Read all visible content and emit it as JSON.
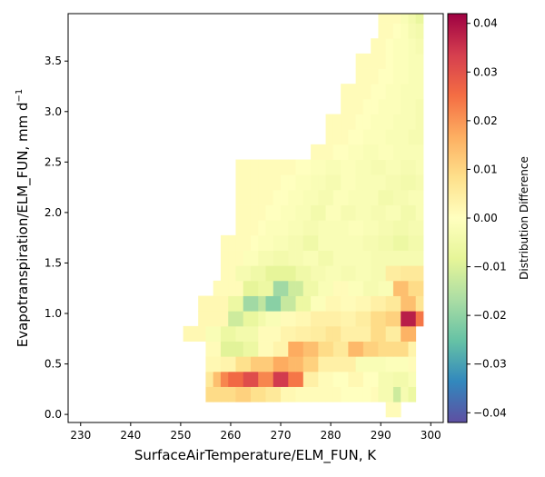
{
  "chart_data": {
    "type": "heatmap",
    "xlabel": "SurfaceAirTemperature/ELM_FUN,  K",
    "ylabel": "Evapotranspiration/ELM_FUN,  mm d",
    "ylabel_sup": "−1",
    "xlim": [
      227.5,
      302.5
    ],
    "ylim": [
      -0.08,
      3.97
    ],
    "xticks": [
      230,
      240,
      250,
      260,
      270,
      280,
      290,
      300
    ],
    "xtick_labels": [
      "230",
      "240",
      "250",
      "260",
      "270",
      "280",
      "290",
      "300"
    ],
    "yticks": [
      0.0,
      0.5,
      1.0,
      1.5,
      2.0,
      2.5,
      3.0,
      3.5
    ],
    "ytick_labels": [
      "0.0",
      "0.5",
      "1.0",
      "1.5",
      "2.0",
      "2.5",
      "3.0",
      "3.5"
    ],
    "cell_x0": 225,
    "cell_dx": 1.5,
    "cell_dy": 0.15,
    "rows": [
      {
        "y": -0.025,
        "c0": 44,
        "values": [
          0.001,
          0.001
        ]
      },
      {
        "y": 0.125,
        "c0": 20,
        "values": [
          0.009,
          0.009,
          0.009,
          0.009,
          0.011,
          0.011,
          0.008,
          0.008,
          0.006,
          0.006,
          0.002,
          0.002,
          0.001,
          0.001,
          0.001,
          0.001,
          0.001,
          0.001,
          0.0,
          0.0,
          0.0,
          0.0,
          0.001,
          -0.003,
          -0.003,
          -0.012,
          -0.003,
          -0.006
        ]
      },
      {
        "y": 0.275,
        "c0": 20,
        "values": [
          0.006,
          0.014,
          0.022,
          0.026,
          0.026,
          0.031,
          0.031,
          0.022,
          0.022,
          0.034,
          0.034,
          0.024,
          0.024,
          0.004,
          0.004,
          0.001,
          0.001,
          0.0,
          0.0,
          0.002,
          0.002,
          0.0,
          0.0,
          -0.003,
          -0.003,
          -0.004,
          -0.004,
          -0.002
        ]
      },
      {
        "y": 0.425,
        "c0": 20,
        "values": [
          0.002,
          0.002,
          0.003,
          0.003,
          0.008,
          0.008,
          0.012,
          0.012,
          0.012,
          0.017,
          0.017,
          0.015,
          0.015,
          0.011,
          0.011,
          0.004,
          0.004,
          0.004,
          0.004,
          0.004,
          -0.002,
          -0.002,
          -0.002,
          -0.002,
          -0.001,
          -0.001,
          -0.001,
          0.001
        ]
      },
      {
        "y": 0.575,
        "c0": 20,
        "values": [
          0.001,
          0.001,
          -0.009,
          -0.009,
          -0.009,
          -0.006,
          -0.006,
          0.001,
          0.001,
          0.003,
          0.003,
          0.017,
          0.017,
          0.014,
          0.014,
          0.009,
          0.009,
          0.006,
          0.006,
          0.015,
          0.015,
          0.011,
          0.011,
          0.009,
          0.009,
          0.009,
          0.009,
          0.003
        ]
      },
      {
        "y": 0.725,
        "c0": 17,
        "values": [
          0.002,
          0.002,
          0.002,
          -0.002,
          -0.002,
          -0.006,
          -0.006,
          -0.004,
          -0.004,
          -0.004,
          0.001,
          0.001,
          0.001,
          0.003,
          0.003,
          0.004,
          0.004,
          0.005,
          0.005,
          0.007,
          0.007,
          0.004,
          0.004,
          0.004,
          0.004,
          0.009,
          0.009,
          0.005,
          0.005,
          0.016,
          0.016
        ]
      },
      {
        "y": 0.875,
        "c0": 19,
        "values": [
          0.002,
          0.002,
          0.002,
          0.002,
          -0.012,
          -0.012,
          -0.007,
          -0.007,
          -0.004,
          -0.002,
          -0.002,
          0.001,
          0.001,
          0.002,
          0.002,
          0.004,
          0.004,
          0.004,
          0.004,
          0.003,
          0.003,
          0.005,
          0.005,
          0.009,
          0.009,
          0.011,
          0.011,
          0.038,
          0.038,
          0.024
        ]
      },
      {
        "y": 1.025,
        "c0": 19,
        "values": [
          0.002,
          0.002,
          0.002,
          0.002,
          -0.006,
          -0.006,
          -0.018,
          -0.018,
          -0.014,
          -0.021,
          -0.021,
          -0.013,
          -0.013,
          -0.006,
          -0.006,
          -0.001,
          -0.001,
          0.002,
          0.002,
          0.001,
          0.001,
          0.002,
          0.002,
          0.004,
          0.004,
          0.006,
          0.006,
          0.014,
          0.014,
          0.007
        ]
      },
      {
        "y": 1.175,
        "c0": 21,
        "values": [
          0.001,
          0.001,
          0.001,
          0.001,
          -0.008,
          -0.008,
          -0.006,
          -0.006,
          -0.018,
          -0.018,
          -0.012,
          -0.012,
          -0.005,
          -0.005,
          -0.002,
          -0.002,
          0.001,
          0.001,
          -0.001,
          -0.001,
          -0.003,
          -0.003,
          -0.002,
          -0.002,
          0.014,
          0.014,
          0.009,
          0.009
        ]
      },
      {
        "y": 1.325,
        "c0": 22,
        "values": [
          0.001,
          0.001,
          -0.003,
          -0.003,
          -0.005,
          -0.005,
          -0.008,
          -0.008,
          -0.008,
          -0.008,
          -0.005,
          -0.005,
          -0.003,
          -0.003,
          -0.002,
          -0.002,
          -0.003,
          -0.003,
          -0.002,
          -0.002,
          -0.003,
          -0.003,
          0.005,
          0.005,
          0.006,
          0.006,
          0.006
        ]
      },
      {
        "y": 1.475,
        "c0": 22,
        "values": [
          0.001,
          0.001,
          0.001,
          -0.001,
          -0.001,
          -0.003,
          -0.003,
          -0.004,
          -0.004,
          -0.003,
          -0.003,
          -0.002,
          -0.002,
          -0.004,
          -0.004,
          -0.002,
          -0.002,
          -0.002,
          -0.002,
          -0.002,
          -0.003,
          -0.003,
          -0.003,
          -0.003,
          -0.003,
          -0.003,
          -0.003
        ]
      },
      {
        "y": 1.625,
        "c0": 22,
        "values": [
          0.001,
          0.001,
          0.001,
          0.001,
          0.0,
          -0.001,
          -0.001,
          -0.002,
          -0.002,
          -0.003,
          -0.003,
          -0.005,
          -0.005,
          -0.002,
          -0.002,
          -0.002,
          -0.002,
          -0.002,
          -0.002,
          -0.003,
          -0.003,
          -0.004,
          -0.004,
          -0.006,
          -0.006,
          -0.004,
          -0.004
        ]
      },
      {
        "y": 1.775,
        "c0": 24,
        "values": [
          0.001,
          0.001,
          0.001,
          0.0,
          -0.001,
          -0.001,
          -0.001,
          -0.002,
          -0.002,
          -0.003,
          -0.003,
          -0.002,
          -0.002,
          -0.002,
          -0.002,
          -0.001,
          -0.001,
          -0.002,
          -0.002,
          -0.003,
          -0.003,
          -0.004,
          -0.004,
          -0.003,
          -0.003
        ]
      },
      {
        "y": 1.925,
        "c0": 24,
        "values": [
          0.001,
          0.001,
          0.001,
          0.001,
          0.0,
          0.0,
          -0.001,
          -0.001,
          -0.002,
          -0.002,
          -0.004,
          -0.004,
          -0.001,
          -0.001,
          -0.003,
          -0.003,
          -0.002,
          -0.002,
          -0.003,
          -0.003,
          -0.002,
          -0.002,
          -0.004,
          -0.004,
          -0.002
        ]
      },
      {
        "y": 2.075,
        "c0": 24,
        "values": [
          0.001,
          0.001,
          0.001,
          0.001,
          0.001,
          0.0,
          0.0,
          -0.001,
          -0.001,
          -0.002,
          -0.002,
          -0.003,
          -0.003,
          -0.001,
          -0.001,
          -0.002,
          -0.002,
          -0.002,
          -0.002,
          -0.004,
          -0.004,
          -0.003,
          -0.003,
          -0.002,
          -0.002
        ]
      },
      {
        "y": 2.225,
        "c0": 24,
        "values": [
          0.001,
          0.001,
          0.001,
          0.001,
          0.001,
          0.001,
          0.0,
          0.0,
          -0.001,
          -0.001,
          -0.002,
          -0.002,
          -0.003,
          -0.003,
          -0.001,
          -0.001,
          -0.002,
          -0.002,
          -0.002,
          -0.002,
          -0.003,
          -0.003,
          -0.004,
          -0.004,
          -0.003
        ]
      },
      {
        "y": 2.375,
        "c0": 24,
        "values": [
          0.001,
          0.001,
          0.001,
          0.001,
          0.001,
          0.001,
          0.001,
          0.001,
          0.0,
          0.0,
          -0.001,
          -0.001,
          -0.002,
          -0.002,
          -0.001,
          -0.001,
          -0.002,
          -0.002,
          -0.003,
          -0.003,
          -0.002,
          -0.002,
          -0.003,
          -0.003,
          -0.002
        ]
      },
      {
        "y": 2.525,
        "c0": 34,
        "values": [
          0.001,
          0.001,
          0.001,
          0.0,
          0.0,
          -0.001,
          -0.001,
          -0.002,
          -0.002,
          -0.001,
          -0.001,
          -0.002,
          -0.002,
          -0.002,
          -0.002
        ]
      },
      {
        "y": 2.675,
        "c0": 36,
        "values": [
          0.001,
          0.001,
          0.001,
          0.0,
          0.0,
          -0.001,
          -0.001,
          -0.001,
          -0.002,
          -0.002,
          -0.002,
          -0.003,
          -0.003
        ]
      },
      {
        "y": 2.825,
        "c0": 36,
        "values": [
          0.001,
          0.001,
          0.001,
          0.001,
          0.0,
          0.0,
          -0.001,
          -0.001,
          -0.001,
          -0.002,
          -0.002,
          -0.002,
          -0.003
        ]
      },
      {
        "y": 2.975,
        "c0": 38,
        "values": [
          0.001,
          0.001,
          0.001,
          0.0,
          0.0,
          -0.001,
          -0.001,
          -0.001,
          -0.002,
          -0.002,
          -0.003
        ]
      },
      {
        "y": 3.125,
        "c0": 38,
        "values": [
          0.001,
          0.001,
          0.001,
          0.001,
          0.0,
          0.0,
          -0.001,
          -0.001,
          -0.002,
          -0.002,
          -0.002
        ]
      },
      {
        "y": 3.275,
        "c0": 40,
        "values": [
          0.001,
          0.001,
          0.001,
          0.0,
          0.0,
          -0.001,
          -0.001,
          -0.002,
          -0.002
        ]
      },
      {
        "y": 3.425,
        "c0": 40,
        "values": [
          0.001,
          0.001,
          0.001,
          0.001,
          0.0,
          -0.001,
          -0.001,
          -0.002,
          -0.002
        ]
      },
      {
        "y": 3.575,
        "c0": 42,
        "values": [
          0.001,
          0.001,
          0.0,
          -0.001,
          -0.001,
          -0.002,
          -0.003
        ]
      },
      {
        "y": 3.725,
        "c0": 43,
        "values": [
          0.001,
          0.001,
          0.0,
          -0.001,
          -0.003,
          -0.004
        ]
      },
      {
        "y": 3.875,
        "c0": 43,
        "values": [
          0.001,
          0.001,
          0.001,
          -0.002,
          -0.004,
          -0.007
        ]
      }
    ],
    "colorbar": {
      "label": "Distribution Difference",
      "min": -0.042,
      "max": 0.042,
      "ticks": [
        0.04,
        0.03,
        0.02,
        0.01,
        0.0,
        -0.01,
        -0.02,
        -0.03,
        -0.04
      ],
      "tick_labels": [
        "0.04",
        "0.03",
        "0.02",
        "0.01",
        "0.00",
        "−0.01",
        "−0.02",
        "−0.03",
        "−0.04"
      ],
      "colormap": "Spectral_r",
      "stops": [
        "#5e4fa2",
        "#3288bd",
        "#66c2a5",
        "#abdda4",
        "#e6f598",
        "#ffffbf",
        "#fee08b",
        "#fdae61",
        "#f46d43",
        "#d53e4f",
        "#9e0142"
      ]
    },
    "grid": false
  }
}
